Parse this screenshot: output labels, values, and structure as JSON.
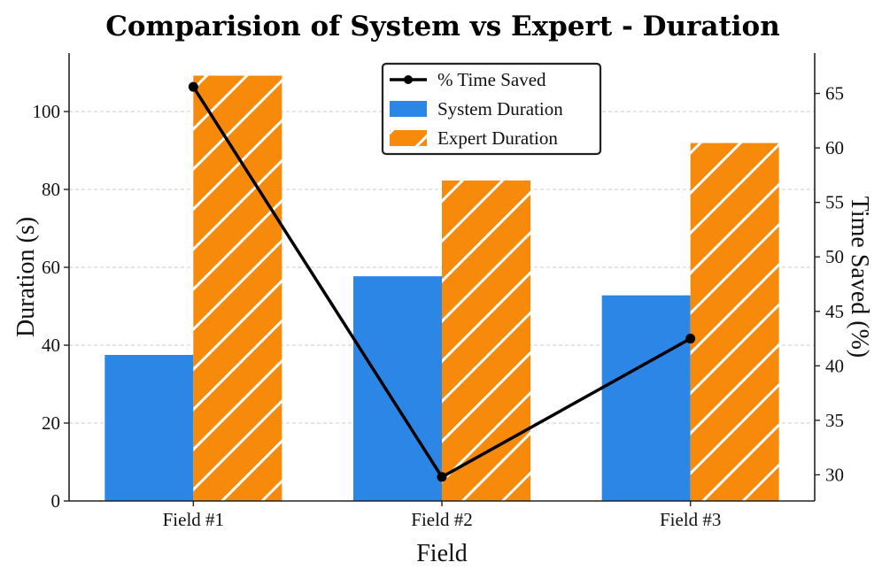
{
  "chart_data": {
    "type": "bar",
    "title": "Comparision of System vs Expert - Duration",
    "xlabel": "Field",
    "ylabel": "Duration (s)",
    "y2label": "Time Saved (%)",
    "categories": [
      "Field #1",
      "Field #2",
      "Field #3"
    ],
    "series": [
      {
        "name": "System Duration",
        "kind": "bar",
        "axis": "left",
        "color": "#2b86e6",
        "values": [
          37.5,
          57.7,
          52.8
        ]
      },
      {
        "name": "Expert Duration",
        "kind": "bar",
        "axis": "left",
        "color": "#f7890b",
        "hatch": "diagonal",
        "values": [
          109.2,
          82.3,
          91.9
        ]
      },
      {
        "name": "% Time Saved",
        "kind": "line",
        "axis": "right",
        "color": "#000000",
        "values": [
          65.6,
          29.8,
          42.5
        ]
      }
    ],
    "ylim": [
      0,
      115
    ],
    "y2lim": [
      27.6,
      68.7
    ],
    "yticks": [
      0,
      20,
      40,
      60,
      80,
      100
    ],
    "y2ticks": [
      30,
      35,
      40,
      45,
      50,
      55,
      60,
      65
    ],
    "legend_position": "top-center",
    "legend_order": [
      "% Time Saved",
      "System Duration",
      "Expert Duration"
    ],
    "grid": "horizontal-dashed"
  }
}
